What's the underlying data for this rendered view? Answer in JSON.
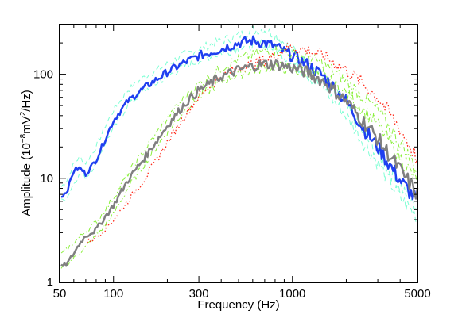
{
  "chart_data": {
    "type": "line",
    "title": "",
    "xlabel": "Frequency (Hz)",
    "ylabel": {
      "prefix": "Amplitude (10",
      "exp1": "−8",
      "mid": "mV",
      "exp2": "2",
      "suffix": "/Hz)"
    },
    "x_scale": "log",
    "y_scale": "log",
    "xlim": [
      50,
      5000
    ],
    "ylim": [
      1,
      300
    ],
    "x_ticks": [
      50,
      100,
      300,
      1000,
      5000
    ],
    "x_tick_labels": [
      "50",
      "100",
      "300",
      "1000",
      "5000"
    ],
    "y_ticks": [
      1,
      10,
      100
    ],
    "y_tick_labels": [
      "1",
      "10",
      "100"
    ],
    "grid": false,
    "legend": "none",
    "series": [
      {
        "color": "#7fffd4",
        "style": "dashed",
        "width": 1,
        "x": [
          50,
          55,
          60,
          65,
          70,
          80,
          90,
          100,
          120,
          150,
          200,
          250,
          300,
          400,
          500,
          600,
          700,
          800,
          900,
          1000,
          1200,
          1500,
          2000,
          2500,
          3000,
          4000,
          5000
        ],
        "y": [
          8,
          9.5,
          14,
          16,
          14,
          20,
          32,
          45,
          70,
          95,
          125,
          155,
          175,
          210,
          235,
          265,
          270,
          240,
          200,
          170,
          130,
          92,
          48,
          27,
          17,
          8.5,
          5.2
        ]
      },
      {
        "color": "#7fffd4",
        "style": "dashed",
        "width": 1,
        "x": [
          50,
          55,
          60,
          65,
          70,
          80,
          90,
          100,
          120,
          150,
          200,
          250,
          300,
          400,
          500,
          600,
          700,
          800,
          900,
          1000,
          1200,
          1500,
          2000,
          2500,
          3000,
          4000,
          5000
        ],
        "y": [
          6,
          6.5,
          9,
          11,
          10,
          14,
          22,
          30,
          50,
          70,
          95,
          120,
          135,
          160,
          180,
          190,
          195,
          175,
          150,
          130,
          100,
          72,
          40,
          22,
          14,
          6.5,
          4.2
        ]
      },
      {
        "color": "#1f3ff0",
        "style": "solid",
        "width": 2.5,
        "x": [
          50,
          55,
          60,
          65,
          70,
          80,
          90,
          100,
          120,
          150,
          200,
          250,
          300,
          400,
          500,
          600,
          700,
          800,
          900,
          1000,
          1200,
          1500,
          2000,
          2500,
          3000,
          4000,
          5000
        ],
        "y": [
          6.5,
          7.5,
          12,
          12.5,
          11,
          15,
          24,
          36,
          55,
          75,
          105,
          130,
          150,
          175,
          200,
          210,
          200,
          185,
          165,
          150,
          125,
          95,
          55,
          30,
          20,
          9.5,
          6
        ]
      },
      {
        "color": "#8bf03c",
        "style": "dashdot",
        "width": 1,
        "x": [
          50,
          60,
          70,
          80,
          90,
          100,
          120,
          150,
          200,
          250,
          300,
          400,
          500,
          600,
          700,
          800,
          900,
          1000,
          1200,
          1500,
          2000,
          2500,
          3000,
          4000,
          5000
        ],
        "y": [
          1.3,
          1.7,
          2.2,
          2.8,
          3.6,
          4.5,
          8,
          14,
          28,
          45,
          60,
          85,
          100,
          110,
          115,
          120,
          115,
          110,
          105,
          95,
          65,
          45,
          33,
          16,
          9
        ]
      },
      {
        "color": "#8bf03c",
        "style": "dashdot",
        "width": 1,
        "x": [
          50,
          60,
          70,
          80,
          90,
          100,
          120,
          150,
          200,
          250,
          300,
          400,
          500,
          600,
          700,
          800,
          900,
          1000,
          1200,
          1500,
          2000,
          2500,
          3000,
          4000,
          5000
        ],
        "y": [
          1.8,
          2.4,
          3.1,
          3.8,
          5,
          6.5,
          11,
          19,
          38,
          60,
          80,
          115,
          140,
          155,
          165,
          170,
          165,
          155,
          145,
          125,
          85,
          60,
          45,
          22,
          12
        ]
      },
      {
        "color": "#ff2a1a",
        "style": "dotted",
        "width": 1.3,
        "x": [
          70,
          80,
          90,
          100,
          120,
          150,
          200,
          250,
          300,
          400,
          500,
          600,
          700,
          800,
          900,
          1000,
          1200,
          1500,
          2000,
          2500,
          3000,
          4000,
          5000
        ],
        "y": [
          2.4,
          2.7,
          3.3,
          4,
          6,
          10,
          22,
          40,
          62,
          95,
          115,
          125,
          135,
          150,
          175,
          180,
          170,
          150,
          110,
          80,
          60,
          30,
          15
        ]
      },
      {
        "color": "#808080",
        "style": "solid",
        "width": 2.5,
        "x": [
          50,
          55,
          60,
          65,
          70,
          80,
          90,
          100,
          120,
          150,
          200,
          250,
          300,
          400,
          500,
          600,
          700,
          800,
          900,
          1000,
          1200,
          1500,
          2000,
          2500,
          3000,
          4000,
          5000
        ],
        "y": [
          1.4,
          1.5,
          1.9,
          2.4,
          2.8,
          3.2,
          4.3,
          5.5,
          9.5,
          16,
          32,
          52,
          70,
          95,
          110,
          120,
          125,
          125,
          120,
          115,
          105,
          85,
          55,
          35,
          24,
          12,
          7
        ]
      }
    ]
  }
}
